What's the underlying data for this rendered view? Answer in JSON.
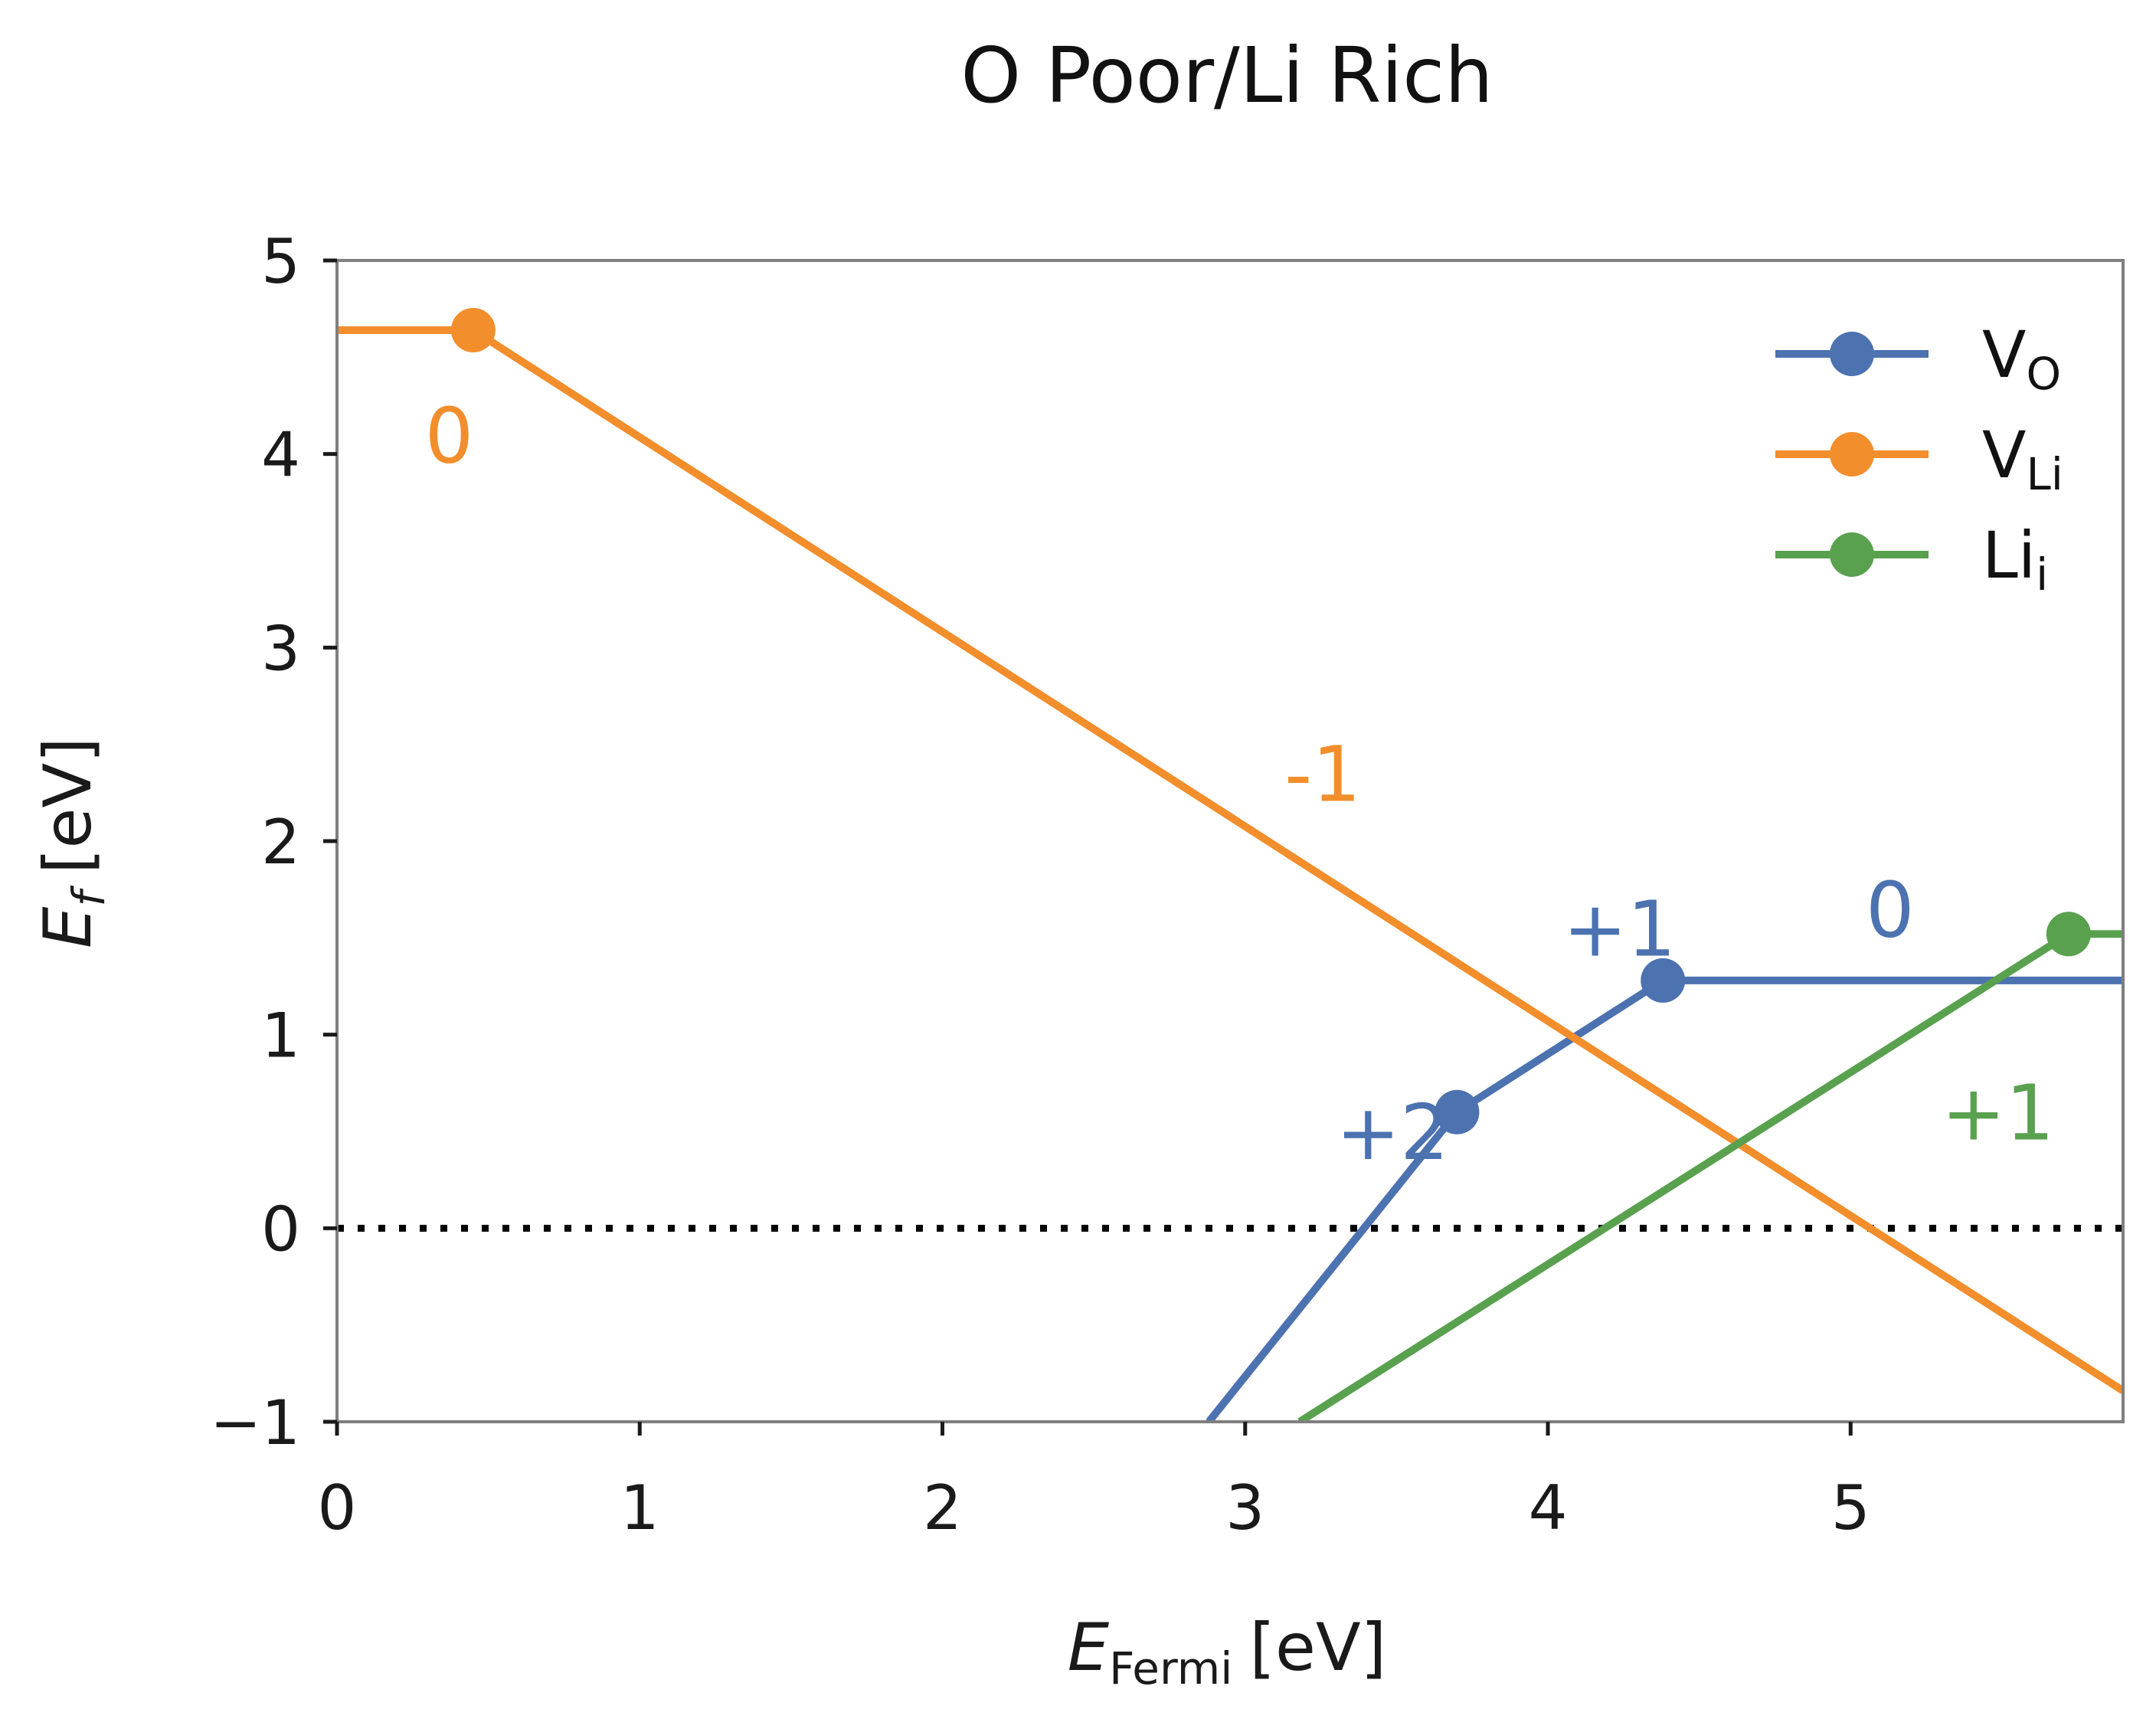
{
  "chart_data": {
    "type": "line",
    "title": "O Poor/Li Rich",
    "xlabel": {
      "main": "E",
      "sub": "Fermi",
      "unit": "[eV]"
    },
    "ylabel": {
      "main": "E",
      "sub": "f",
      "unit": "[eV]"
    },
    "xlim": [
      0,
      5.9
    ],
    "ylim": [
      -1,
      5
    ],
    "xticks": [
      "0",
      "1",
      "2",
      "3",
      "4",
      "5"
    ],
    "yticks": [
      "−1",
      "0",
      "1",
      "2",
      "3",
      "4",
      "5"
    ],
    "grid": false,
    "reference_line": {
      "y": 0,
      "style": "dotted",
      "color": "#000000"
    },
    "legend": {
      "position": "top-right",
      "entries": [
        {
          "base": "V",
          "sub": "O",
          "color": "#4c72b0"
        },
        {
          "base": "V",
          "sub": "Li",
          "color": "#f28e2b"
        },
        {
          "base": "Li",
          "sub": "i",
          "color": "#59a14f"
        }
      ]
    },
    "series": [
      {
        "name": "V_O",
        "color": "#4c72b0",
        "points": [
          [
            2.88,
            -1.0
          ],
          [
            3.7,
            0.6
          ],
          [
            4.38,
            1.28
          ],
          [
            5.9,
            1.28
          ]
        ],
        "markers": [
          [
            3.7,
            0.6
          ],
          [
            4.38,
            1.28
          ]
        ]
      },
      {
        "name": "V_Li",
        "color": "#f28e2b",
        "points": [
          [
            0.0,
            4.64
          ],
          [
            0.45,
            4.64
          ],
          [
            5.9,
            -0.84
          ]
        ],
        "markers": [
          [
            0.45,
            4.64
          ]
        ]
      },
      {
        "name": "Li_i",
        "color": "#59a14f",
        "points": [
          [
            3.18,
            -1.0
          ],
          [
            5.72,
            1.52
          ],
          [
            5.9,
            1.52
          ]
        ],
        "markers": [
          [
            5.72,
            1.52
          ]
        ]
      }
    ],
    "annotations": [
      {
        "text": "0",
        "x": 0.29,
        "y": 4.1,
        "color": "#f28e2b"
      },
      {
        "text": "-1",
        "x": 3.13,
        "y": 2.35,
        "color": "#f28e2b"
      },
      {
        "text": "+2",
        "x": 3.3,
        "y": 0.5,
        "color": "#4c72b0"
      },
      {
        "text": "+1",
        "x": 4.05,
        "y": 1.55,
        "color": "#4c72b0"
      },
      {
        "text": "0",
        "x": 5.05,
        "y": 1.65,
        "color": "#4c72b0"
      },
      {
        "text": "+1",
        "x": 5.3,
        "y": 0.6,
        "color": "#59a14f"
      }
    ]
  }
}
